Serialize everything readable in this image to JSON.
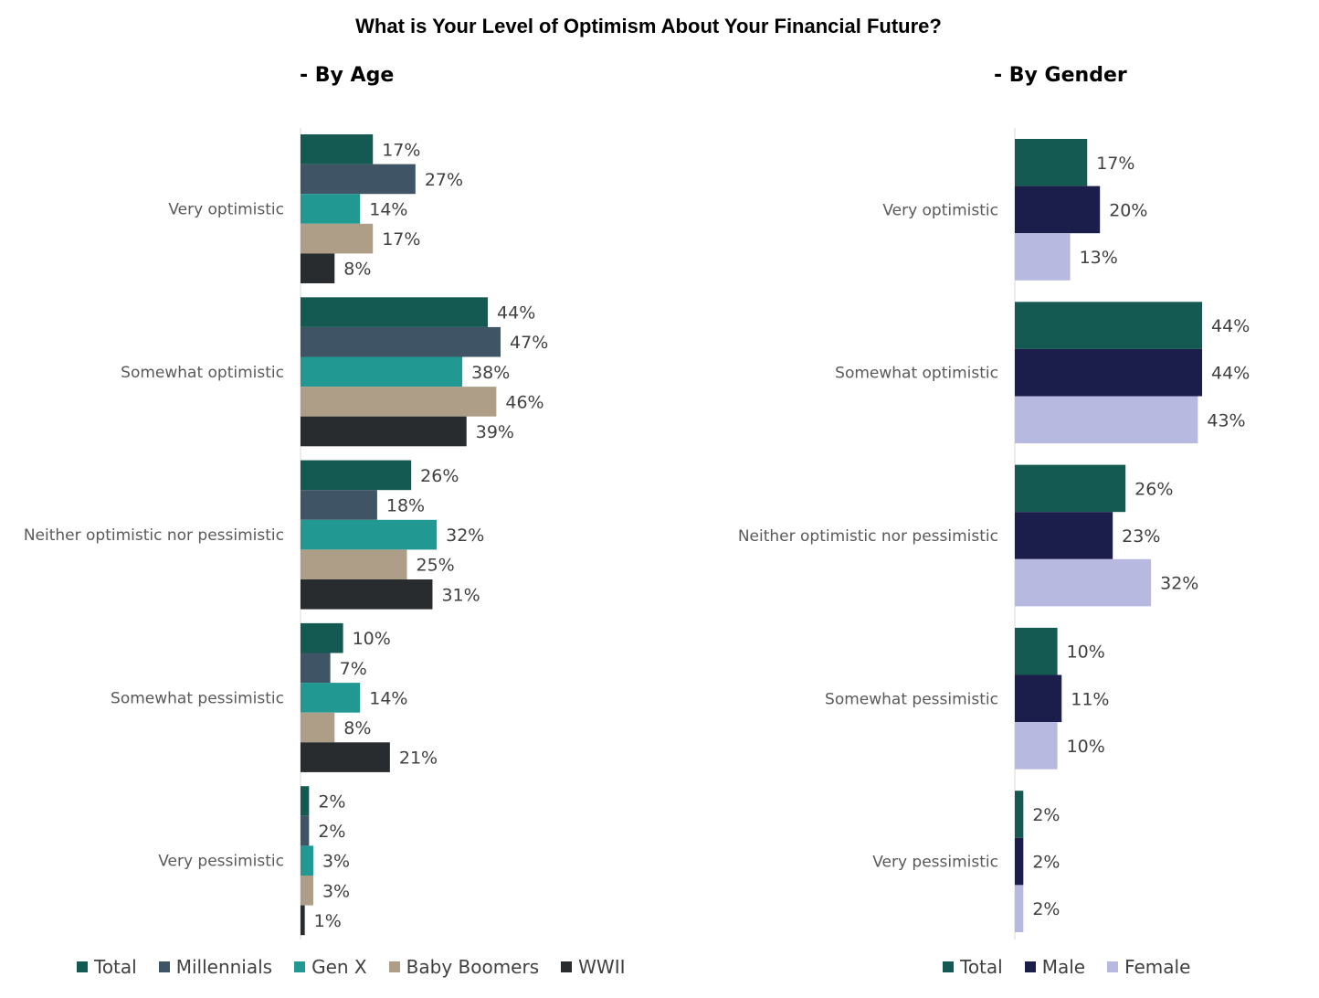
{
  "title": "What is Your Level of Optimism About Your Financial Future?",
  "chart_data": [
    {
      "type": "bar",
      "orientation": "horizontal",
      "subtitle": "- By Age",
      "categories": [
        "Very optimistic",
        "Somewhat optimistic",
        "Neither optimistic nor pessimistic",
        "Somewhat pessimistic",
        "Very pessimistic"
      ],
      "series": [
        {
          "name": "Total",
          "color": "#155a52",
          "values": [
            17,
            44,
            26,
            10,
            2
          ],
          "labels": [
            "17%",
            "44%",
            "26%",
            "10%",
            "2%"
          ]
        },
        {
          "name": "Millennials",
          "color": "#3f5464",
          "values": [
            27,
            47,
            18,
            7,
            2
          ],
          "labels": [
            "27%",
            "47%",
            "18%",
            "7%",
            "2%"
          ]
        },
        {
          "name": "Gen X",
          "color": "#229893",
          "values": [
            14,
            38,
            32,
            14,
            3
          ],
          "labels": [
            "14%",
            "38%",
            "32%",
            "14%",
            "3%"
          ]
        },
        {
          "name": "Baby Boomers",
          "color": "#ae9e87",
          "values": [
            17,
            46,
            25,
            8,
            3
          ],
          "labels": [
            "17%",
            "46%",
            "25%",
            "8%",
            "3%"
          ]
        },
        {
          "name": "WWII",
          "color": "#282c2e",
          "values": [
            8,
            39,
            31,
            21,
            1
          ],
          "labels": [
            "8%",
            "39%",
            "31%",
            "21%",
            "1%"
          ]
        }
      ],
      "unit": "%",
      "xlim": [
        0,
        100
      ],
      "legend_position": "bottom"
    },
    {
      "type": "bar",
      "orientation": "horizontal",
      "subtitle": "- By Gender",
      "categories": [
        "Very optimistic",
        "Somewhat optimistic",
        "Neither optimistic nor pessimistic",
        "Somewhat pessimistic",
        "Very pessimistic"
      ],
      "series": [
        {
          "name": "Total",
          "color": "#155a52",
          "values": [
            17,
            44,
            26,
            10,
            2
          ],
          "labels": [
            "17%",
            "44%",
            "26%",
            "10%",
            "2%"
          ]
        },
        {
          "name": "Male",
          "color": "#1b1d4b",
          "values": [
            20,
            44,
            23,
            11,
            2
          ],
          "labels": [
            "20%",
            "44%",
            "23%",
            "11%",
            "2%"
          ]
        },
        {
          "name": "Female",
          "color": "#b7b9e1",
          "values": [
            13,
            43,
            32,
            10,
            2
          ],
          "labels": [
            "13%",
            "43%",
            "32%",
            "10%",
            "2%"
          ]
        }
      ],
      "unit": "%",
      "xlim": [
        0,
        100
      ],
      "legend_position": "bottom"
    }
  ]
}
